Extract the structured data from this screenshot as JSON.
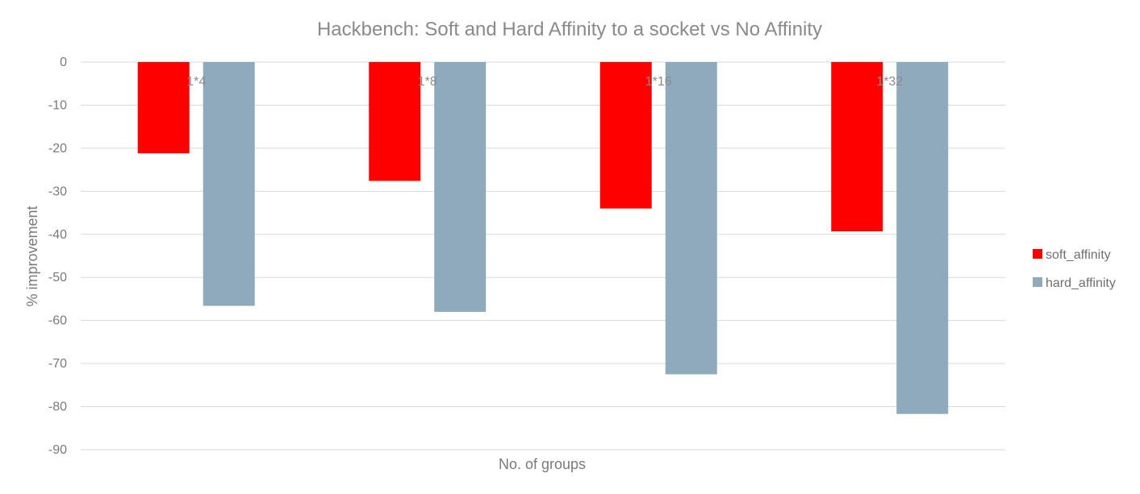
{
  "chart_data": {
    "type": "bar",
    "title": "Hackbench: Soft and Hard Affinity to a socket vs No Affinity",
    "xlabel": "No. of groups",
    "ylabel": "% improvement",
    "categories": [
      "1*4",
      "1*8",
      "1*16",
      "1*32"
    ],
    "series": [
      {
        "name": "soft_affinity",
        "color": "#ff0000",
        "values": [
          -21.2,
          -27.6,
          -34.0,
          -39.3
        ]
      },
      {
        "name": "hard_affinity",
        "color": "#8eaabc",
        "values": [
          -56.6,
          -58.0,
          -72.5,
          -81.7
        ]
      }
    ],
    "ylim": [
      -90,
      0
    ],
    "yticks": [
      0,
      -10,
      -20,
      -30,
      -40,
      -50,
      -60,
      -70,
      -80,
      -90
    ],
    "grid": true,
    "legend_position": "right"
  }
}
